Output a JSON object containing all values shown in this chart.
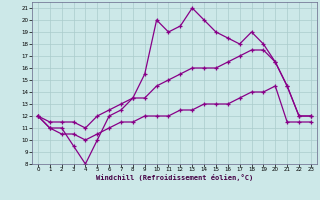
{
  "xlabel": "Windchill (Refroidissement éolien,°C)",
  "background_color": "#cce8e8",
  "grid_color": "#aacccc",
  "line_color": "#880088",
  "xlim": [
    -0.5,
    23.5
  ],
  "ylim": [
    8,
    21.5
  ],
  "xticks": [
    0,
    1,
    2,
    3,
    4,
    5,
    6,
    7,
    8,
    9,
    10,
    11,
    12,
    13,
    14,
    15,
    16,
    17,
    18,
    19,
    20,
    21,
    22,
    23
  ],
  "yticks": [
    8,
    9,
    10,
    11,
    12,
    13,
    14,
    15,
    16,
    17,
    18,
    19,
    20,
    21
  ],
  "x": [
    0,
    1,
    2,
    3,
    4,
    5,
    6,
    7,
    8,
    9,
    10,
    11,
    12,
    13,
    14,
    15,
    16,
    17,
    18,
    19,
    20,
    21,
    22,
    23
  ],
  "line1": [
    12,
    11,
    11,
    9.5,
    8,
    10,
    12,
    12.5,
    13.5,
    15.5,
    20,
    19,
    19.5,
    21,
    20,
    19,
    18.5,
    18,
    19,
    18,
    16.5,
    14.5,
    12,
    12
  ],
  "line2": [
    12,
    11.5,
    11.5,
    11.5,
    11,
    12,
    12.5,
    13,
    13.5,
    13.5,
    14.5,
    15,
    15.5,
    16,
    16,
    16,
    16.5,
    17,
    17.5,
    17.5,
    16.5,
    14.5,
    12,
    12
  ],
  "line3": [
    12,
    11,
    10.5,
    10.5,
    10,
    10.5,
    11,
    11.5,
    11.5,
    12,
    12,
    12,
    12.5,
    12.5,
    13,
    13,
    13,
    13.5,
    14,
    14,
    14.5,
    11.5,
    11.5,
    11.5
  ]
}
